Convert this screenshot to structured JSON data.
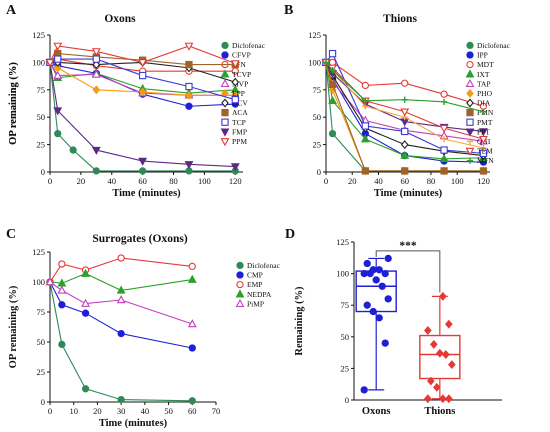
{
  "chart_data": [
    {
      "id": "A",
      "type": "line",
      "panel_label": "A",
      "title": "Oxons",
      "xlabel": "Time (minutes)",
      "ylabel": "OP remaining (%)",
      "xlim": [
        0,
        125
      ],
      "ylim": [
        0,
        125
      ],
      "xticks": [
        0,
        20,
        40,
        60,
        80,
        100,
        120
      ],
      "yticks": [
        0,
        25,
        50,
        75,
        100,
        125
      ],
      "legend_position": "right",
      "series": [
        {
          "name": "Diclofenac",
          "color": "#2e8b57",
          "marker": "circle",
          "filled": true,
          "x": [
            0,
            5,
            15,
            30,
            60,
            90,
            120
          ],
          "y": [
            100,
            35,
            20,
            1,
            1,
            1,
            1
          ]
        },
        {
          "name": "CFVP",
          "color": "#1f1fd6",
          "marker": "circle",
          "filled": true,
          "x": [
            0,
            5,
            30,
            60,
            90,
            120
          ],
          "y": [
            100,
            97,
            90,
            71,
            60,
            62
          ]
        },
        {
          "name": "PFN",
          "color": "#e53935",
          "marker": "circle",
          "filled": false,
          "x": [
            0,
            5,
            30,
            60,
            90,
            120
          ],
          "y": [
            100,
            103,
            97,
            92,
            92,
            92
          ]
        },
        {
          "name": "TCVP",
          "color": "#2ca02c",
          "marker": "triangle-up",
          "filled": true,
          "x": [
            0,
            5,
            30,
            60,
            90,
            120
          ],
          "y": [
            100,
            86,
            90,
            76,
            72,
            75
          ]
        },
        {
          "name": "MVP",
          "color": "#c041c0",
          "marker": "triangle-up",
          "filled": false,
          "x": [
            0,
            5,
            30,
            60,
            90,
            120
          ],
          "y": [
            100,
            88,
            89,
            72,
            70,
            70
          ]
        },
        {
          "name": "EPP",
          "color": "#f39c12",
          "marker": "diamond",
          "filled": true,
          "x": [
            0,
            5,
            30,
            60,
            90,
            120
          ],
          "y": [
            100,
            95,
            75,
            73,
            70,
            70
          ]
        },
        {
          "name": "DCV",
          "color": "#222222",
          "marker": "diamond",
          "filled": false,
          "x": [
            0,
            5,
            30,
            60,
            90,
            120
          ],
          "y": [
            100,
            100,
            98,
            100,
            95,
            82
          ]
        },
        {
          "name": "ACA",
          "color": "#a0642a",
          "marker": "square",
          "filled": true,
          "x": [
            0,
            5,
            30,
            60,
            90,
            120
          ],
          "y": [
            100,
            108,
            105,
            102,
            98,
            98
          ]
        },
        {
          "name": "TCP",
          "color": "#3b3bd6",
          "marker": "square",
          "filled": false,
          "x": [
            0,
            5,
            30,
            60,
            90,
            120
          ],
          "y": [
            100,
            103,
            103,
            88,
            78,
            66
          ]
        },
        {
          "name": "FMP",
          "color": "#5b2a86",
          "marker": "triangle-down",
          "filled": true,
          "x": [
            0,
            5,
            30,
            60,
            90,
            120
          ],
          "y": [
            100,
            56,
            20,
            10,
            7,
            5
          ]
        },
        {
          "name": "PPM",
          "color": "#e53935",
          "marker": "triangle-down",
          "filled": false,
          "x": [
            0,
            5,
            30,
            60,
            90,
            120
          ],
          "y": [
            100,
            115,
            110,
            100,
            115,
            99
          ]
        }
      ]
    },
    {
      "id": "B",
      "type": "line",
      "panel_label": "B",
      "title": "Thions",
      "xlabel": "Time (minutes)",
      "ylabel": "OP remaining (%)",
      "xlim": [
        0,
        125
      ],
      "ylim": [
        0,
        125
      ],
      "xticks": [
        0,
        20,
        40,
        60,
        80,
        100,
        120
      ],
      "yticks": [
        0,
        25,
        50,
        75,
        100,
        125
      ],
      "legend_position": "right",
      "series": [
        {
          "name": "Diclofenac",
          "color": "#2e8b57",
          "marker": "circle",
          "filled": true,
          "x": [
            0,
            5,
            30,
            60,
            90,
            120
          ],
          "y": [
            100,
            35,
            1,
            1,
            1,
            1
          ]
        },
        {
          "name": "IPP",
          "color": "#1f1fd6",
          "marker": "circle",
          "filled": true,
          "x": [
            0,
            5,
            30,
            60,
            90,
            120
          ],
          "y": [
            100,
            85,
            35,
            15,
            10,
            9
          ]
        },
        {
          "name": "MDT",
          "color": "#e53935",
          "marker": "circle",
          "filled": false,
          "x": [
            0,
            5,
            30,
            60,
            90,
            120
          ],
          "y": [
            100,
            100,
            79,
            81,
            71,
            60
          ]
        },
        {
          "name": "IXT",
          "color": "#2ca02c",
          "marker": "triangle-up",
          "filled": true,
          "x": [
            0,
            5,
            30,
            60,
            90,
            120
          ],
          "y": [
            100,
            65,
            30,
            15,
            12,
            13
          ]
        },
        {
          "name": "TAP",
          "color": "#c041c0",
          "marker": "triangle-up",
          "filled": false,
          "x": [
            0,
            5,
            30,
            60,
            90,
            120
          ],
          "y": [
            100,
            82,
            47,
            38,
            33,
            28
          ]
        },
        {
          "name": "PHO",
          "color": "#f39c12",
          "marker": "diamond",
          "filled": true,
          "x": [
            0,
            5,
            30,
            60,
            90,
            120
          ],
          "y": [
            100,
            75,
            1,
            1,
            1,
            1
          ]
        },
        {
          "name": "DIA",
          "color": "#222222",
          "marker": "diamond",
          "filled": false,
          "x": [
            0,
            5,
            30,
            60,
            90,
            120
          ],
          "y": [
            100,
            88,
            40,
            25,
            19,
            15
          ]
        },
        {
          "name": "FMN",
          "color": "#a0642a",
          "marker": "square",
          "filled": true,
          "x": [
            0,
            5,
            30,
            60,
            90,
            120
          ],
          "y": [
            100,
            80,
            1,
            1,
            1,
            1
          ]
        },
        {
          "name": "PMT",
          "color": "#3b3bd6",
          "marker": "square",
          "filled": false,
          "x": [
            0,
            5,
            30,
            60,
            90,
            120
          ],
          "y": [
            100,
            108,
            42,
            37,
            20,
            17
          ]
        },
        {
          "name": "PPT",
          "color": "#5b2a86",
          "marker": "triangle-down",
          "filled": true,
          "x": [
            0,
            5,
            30,
            60,
            90,
            120
          ],
          "y": [
            100,
            90,
            62,
            46,
            41,
            37
          ]
        },
        {
          "name": "QUI",
          "color": "#f5a742",
          "marker": "plus",
          "filled": false,
          "x": [
            0,
            5,
            30,
            60,
            90,
            120
          ],
          "y": [
            100,
            93,
            60,
            50,
            30,
            22
          ]
        },
        {
          "name": "TEM",
          "color": "#e53935",
          "marker": "triangle-down",
          "filled": false,
          "x": [
            0,
            5,
            30,
            60,
            90,
            120
          ],
          "y": [
            100,
            95,
            65,
            55,
            40,
            30
          ]
        },
        {
          "name": "MTN",
          "color": "#2ca02c",
          "marker": "plus",
          "filled": false,
          "x": [
            0,
            5,
            30,
            60,
            90,
            120
          ],
          "y": [
            100,
            93,
            65,
            66,
            64,
            55
          ]
        }
      ]
    },
    {
      "id": "C",
      "type": "line",
      "panel_label": "C",
      "title": "Surrogates (Oxons)",
      "xlabel": "Time (minutes)",
      "ylabel": "OP remaining (%)",
      "xlim": [
        0,
        70
      ],
      "ylim": [
        0,
        125
      ],
      "xticks": [
        0,
        10,
        20,
        30,
        40,
        50,
        60,
        70
      ],
      "yticks": [
        0,
        25,
        50,
        75,
        100,
        125
      ],
      "legend_position": "right",
      "series": [
        {
          "name": "Diclofenac",
          "color": "#2e8b57",
          "marker": "circle",
          "filled": true,
          "x": [
            0,
            5,
            15,
            30,
            60
          ],
          "y": [
            100,
            48,
            11,
            2,
            1
          ]
        },
        {
          "name": "CMP",
          "color": "#1f1fd6",
          "marker": "circle",
          "filled": true,
          "x": [
            0,
            5,
            15,
            30,
            60
          ],
          "y": [
            100,
            81,
            74,
            57,
            45
          ]
        },
        {
          "name": "EMP",
          "color": "#e53935",
          "marker": "circle",
          "filled": false,
          "x": [
            0,
            5,
            15,
            30,
            60
          ],
          "y": [
            100,
            115,
            110,
            120,
            113
          ]
        },
        {
          "name": "NEDPA",
          "color": "#2ca02c",
          "marker": "triangle-up",
          "filled": true,
          "x": [
            0,
            5,
            15,
            30,
            60
          ],
          "y": [
            100,
            99,
            107,
            93,
            102
          ]
        },
        {
          "name": "PiMP",
          "color": "#c041c0",
          "marker": "triangle-up",
          "filled": false,
          "x": [
            0,
            5,
            15,
            30,
            60
          ],
          "y": [
            100,
            93,
            82,
            85,
            65
          ]
        }
      ]
    },
    {
      "id": "D",
      "type": "box",
      "panel_label": "D",
      "title": "",
      "xlabel": "",
      "ylabel": "Remaining (%)",
      "ylim": [
        0,
        125
      ],
      "yticks": [
        0,
        25,
        50,
        75,
        100,
        125
      ],
      "significance": "***",
      "groups": [
        {
          "name": "Oxons",
          "color": "#1f1fd6",
          "min": 8,
          "q1": 70,
          "median": 90,
          "q3": 102,
          "max": 112,
          "points": [
            8,
            45,
            65,
            70,
            75,
            80,
            90,
            95,
            100,
            100,
            100,
            103,
            103,
            108,
            112
          ]
        },
        {
          "name": "Thions",
          "color": "#e53935",
          "min": 1,
          "q1": 17,
          "median": 36,
          "q3": 51,
          "max": 82,
          "points": [
            1,
            1,
            1,
            10,
            15,
            28,
            36,
            37,
            44,
            55,
            60,
            82
          ]
        }
      ]
    }
  ]
}
